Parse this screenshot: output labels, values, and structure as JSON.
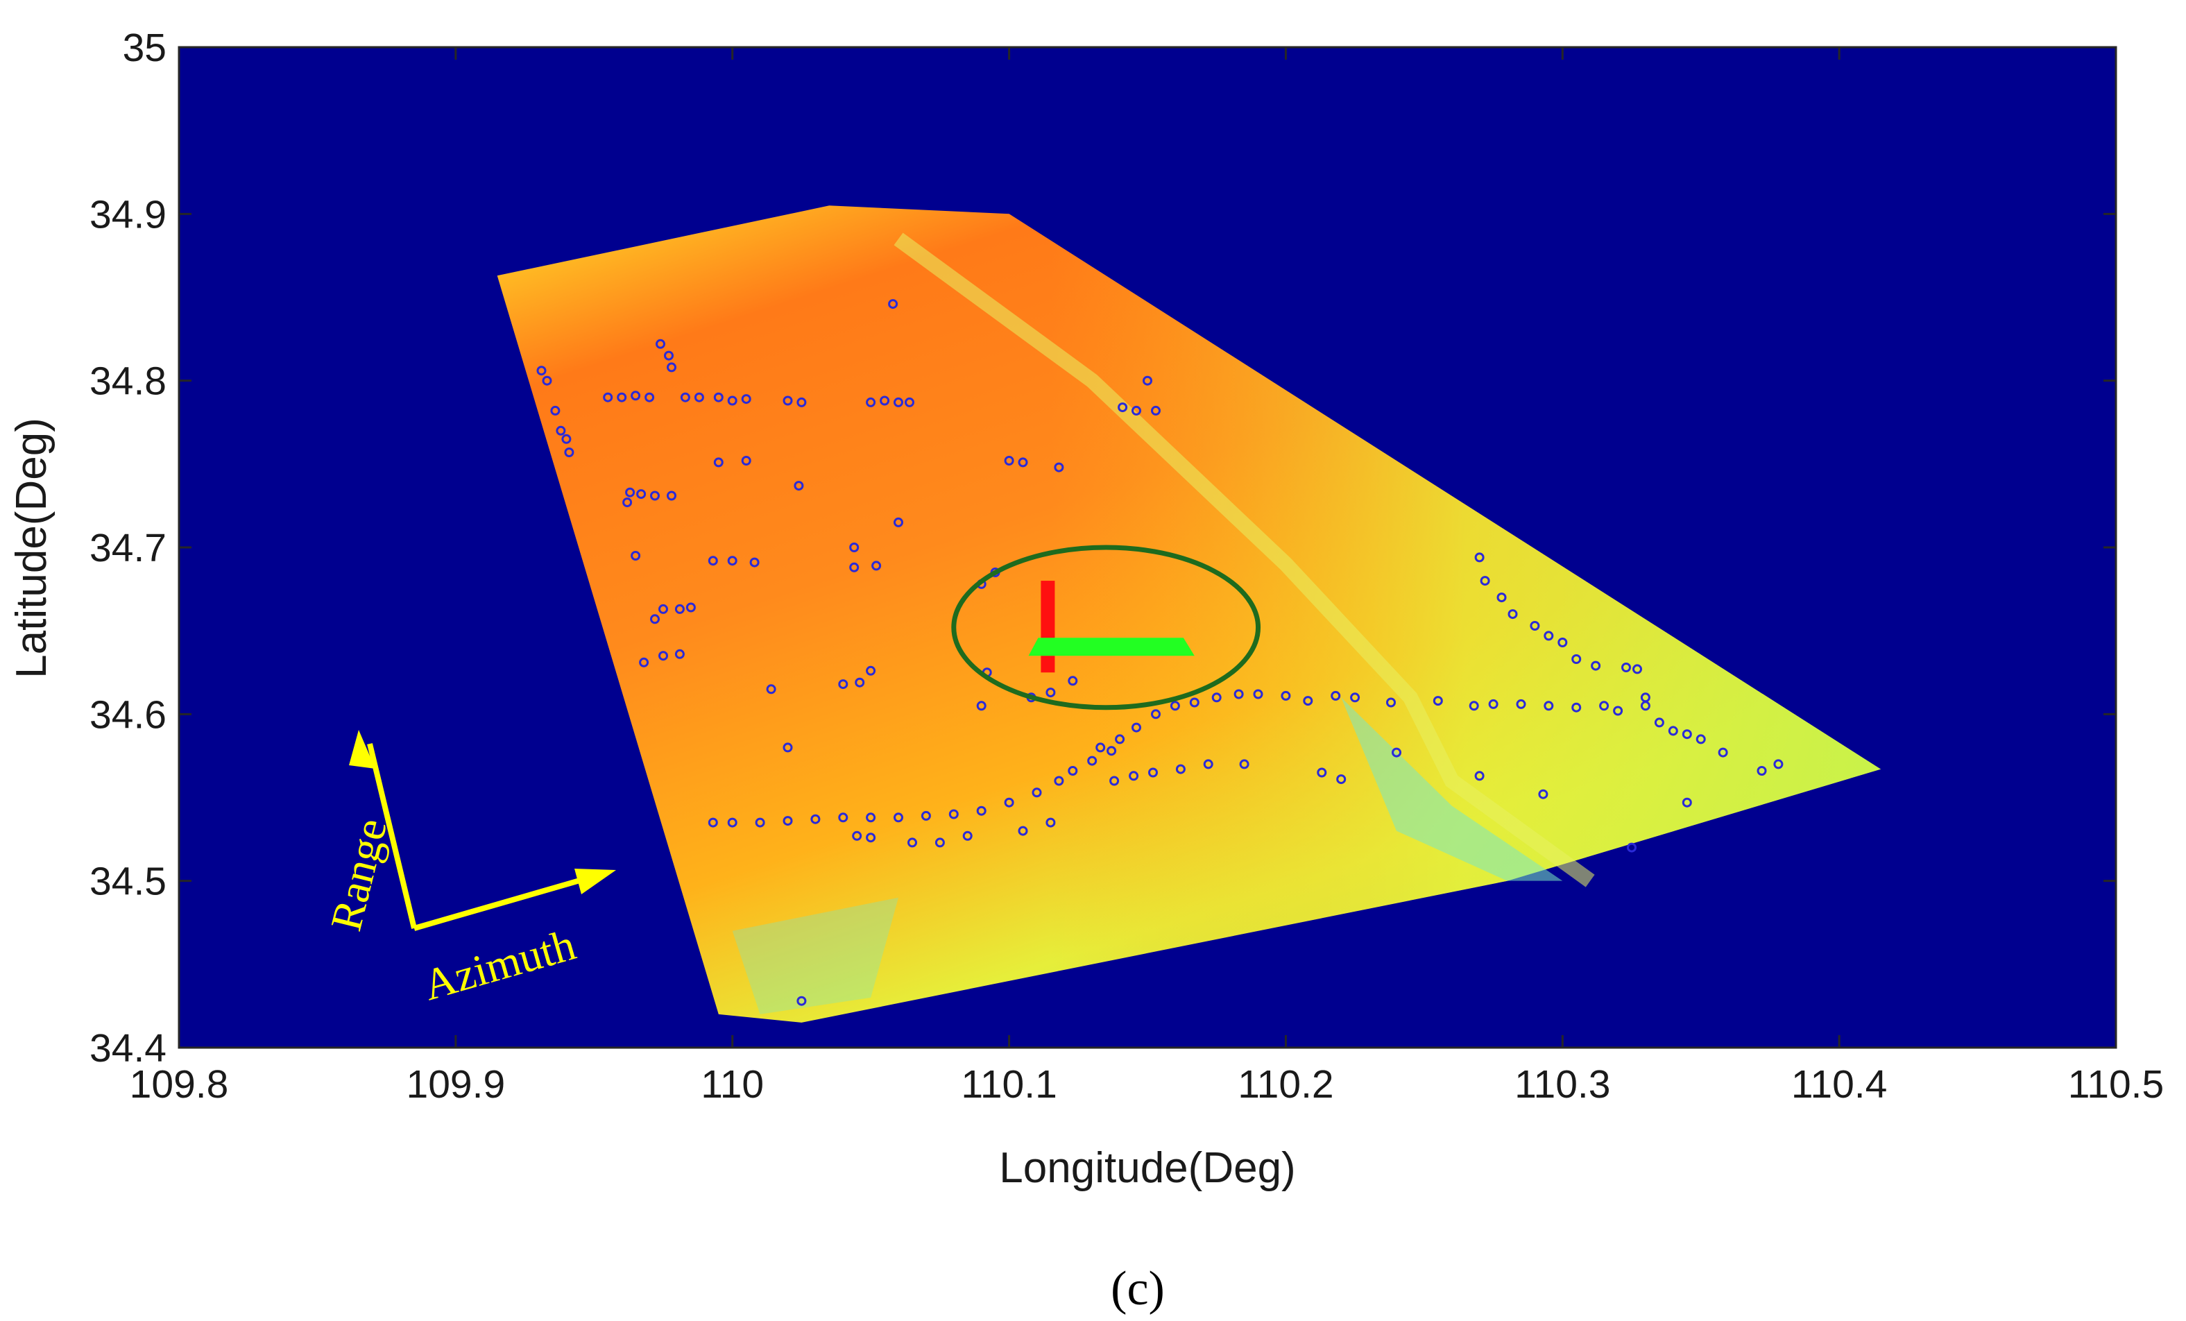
{
  "chart_data": {
    "type": "scatter",
    "background": "SAR-style image footprint rendered as a false-color map",
    "xlabel": "Longitude(Deg)",
    "ylabel": "Latitude(Deg)",
    "xlim": [
      109.8,
      110.5
    ],
    "ylim": [
      34.4,
      35.0
    ],
    "xticks": [
      109.8,
      109.9,
      110.0,
      110.1,
      110.2,
      110.3,
      110.4,
      110.5
    ],
    "xtick_labels": [
      "109.8",
      "109.9",
      "110",
      "110.1",
      "110.2",
      "110.3",
      "110.4",
      "110.5"
    ],
    "yticks": [
      34.4,
      34.5,
      34.6,
      34.7,
      34.8,
      34.9,
      35.0
    ],
    "ytick_labels": [
      "34.4",
      "34.5",
      "34.6",
      "34.7",
      "34.8",
      "34.9",
      "35"
    ],
    "grid": false,
    "colors": {
      "background": "#00008f",
      "footprint_high": "#ff5a10",
      "footprint_mid": "#ffb21a",
      "footprint_low": "#d9f03a",
      "footprint_edge": "#5ee6b0",
      "points": "#2a2ad8",
      "ellipse": "#1e6b1e",
      "red_marker": "#ff1010",
      "green_marker": "#22ff22",
      "annotation_arrows": "#ffff00"
    },
    "footprint_corners": [
      [
        109.915,
        34.863
      ],
      [
        110.035,
        34.905
      ],
      [
        110.1,
        34.9
      ],
      [
        110.415,
        34.567
      ],
      [
        110.28,
        34.5
      ],
      [
        110.025,
        34.415
      ],
      [
        109.995,
        34.42
      ]
    ],
    "ellipse": {
      "center": [
        110.135,
        34.652
      ],
      "rx": 0.055,
      "ry": 0.048
    },
    "red_marker": {
      "x": 110.114,
      "y_range": [
        34.625,
        34.68
      ]
    },
    "green_marker": {
      "x_range": [
        110.107,
        110.165
      ],
      "y": 34.64
    },
    "annotations": {
      "range_label": "Range",
      "azimuth_label": "Azimuth"
    },
    "points": [
      [
        109.931,
        34.806
      ],
      [
        109.933,
        34.8
      ],
      [
        109.936,
        34.782
      ],
      [
        109.938,
        34.77
      ],
      [
        109.94,
        34.765
      ],
      [
        109.941,
        34.757
      ],
      [
        109.955,
        34.79
      ],
      [
        109.96,
        34.79
      ],
      [
        109.965,
        34.791
      ],
      [
        109.97,
        34.79
      ],
      [
        109.974,
        34.822
      ],
      [
        109.977,
        34.815
      ],
      [
        109.978,
        34.808
      ],
      [
        109.983,
        34.79
      ],
      [
        109.988,
        34.79
      ],
      [
        109.995,
        34.79
      ],
      [
        110.0,
        34.788
      ],
      [
        110.005,
        34.789
      ],
      [
        110.02,
        34.788
      ],
      [
        110.025,
        34.787
      ],
      [
        110.05,
        34.787
      ],
      [
        110.055,
        34.788
      ],
      [
        110.06,
        34.787
      ],
      [
        110.064,
        34.787
      ],
      [
        110.1,
        34.752
      ],
      [
        110.105,
        34.751
      ],
      [
        110.118,
        34.748
      ],
      [
        109.995,
        34.751
      ],
      [
        110.005,
        34.752
      ],
      [
        109.963,
        34.733
      ],
      [
        109.967,
        34.732
      ],
      [
        109.972,
        34.731
      ],
      [
        109.978,
        34.731
      ],
      [
        109.962,
        34.727
      ],
      [
        109.965,
        34.695
      ],
      [
        109.993,
        34.692
      ],
      [
        110.0,
        34.692
      ],
      [
        110.008,
        34.691
      ],
      [
        110.044,
        34.688
      ],
      [
        110.052,
        34.689
      ],
      [
        109.975,
        34.663
      ],
      [
        109.981,
        34.663
      ],
      [
        109.985,
        34.664
      ],
      [
        109.972,
        34.657
      ],
      [
        109.968,
        34.631
      ],
      [
        109.975,
        34.635
      ],
      [
        109.981,
        34.636
      ],
      [
        110.04,
        34.618
      ],
      [
        110.046,
        34.619
      ],
      [
        110.05,
        34.626
      ],
      [
        110.058,
        34.846
      ],
      [
        110.15,
        34.8
      ],
      [
        110.141,
        34.784
      ],
      [
        110.146,
        34.782
      ],
      [
        110.153,
        34.782
      ],
      [
        110.09,
        34.678
      ],
      [
        110.095,
        34.685
      ],
      [
        110.108,
        34.61
      ],
      [
        110.115,
        34.613
      ],
      [
        110.123,
        34.62
      ],
      [
        110.133,
        34.58
      ],
      [
        110.14,
        34.585
      ],
      [
        110.146,
        34.592
      ],
      [
        110.153,
        34.6
      ],
      [
        110.16,
        34.605
      ],
      [
        110.167,
        34.607
      ],
      [
        110.175,
        34.61
      ],
      [
        110.183,
        34.612
      ],
      [
        110.19,
        34.612
      ],
      [
        110.2,
        34.611
      ],
      [
        110.208,
        34.608
      ],
      [
        110.218,
        34.611
      ],
      [
        110.225,
        34.61
      ],
      [
        110.238,
        34.607
      ],
      [
        110.255,
        34.608
      ],
      [
        110.268,
        34.605
      ],
      [
        110.275,
        34.606
      ],
      [
        110.285,
        34.606
      ],
      [
        110.295,
        34.605
      ],
      [
        110.305,
        34.604
      ],
      [
        110.315,
        34.605
      ],
      [
        110.32,
        34.602
      ],
      [
        110.33,
        34.605
      ],
      [
        109.993,
        34.535
      ],
      [
        110.0,
        34.535
      ],
      [
        110.01,
        34.535
      ],
      [
        110.02,
        34.536
      ],
      [
        110.03,
        34.537
      ],
      [
        110.04,
        34.538
      ],
      [
        110.05,
        34.538
      ],
      [
        110.06,
        34.538
      ],
      [
        110.07,
        34.539
      ],
      [
        110.08,
        34.54
      ],
      [
        110.09,
        34.542
      ],
      [
        110.1,
        34.547
      ],
      [
        110.11,
        34.553
      ],
      [
        110.118,
        34.56
      ],
      [
        110.123,
        34.566
      ],
      [
        110.13,
        34.572
      ],
      [
        110.137,
        34.578
      ],
      [
        110.045,
        34.527
      ],
      [
        110.05,
        34.526
      ],
      [
        110.065,
        34.523
      ],
      [
        110.075,
        34.523
      ],
      [
        110.085,
        34.527
      ],
      [
        110.105,
        34.53
      ],
      [
        110.115,
        34.535
      ],
      [
        110.138,
        34.56
      ],
      [
        110.145,
        34.563
      ],
      [
        110.152,
        34.565
      ],
      [
        110.162,
        34.567
      ],
      [
        110.172,
        34.57
      ],
      [
        110.185,
        34.57
      ],
      [
        110.22,
        34.561
      ],
      [
        110.213,
        34.565
      ],
      [
        110.27,
        34.694
      ],
      [
        110.272,
        34.68
      ],
      [
        110.278,
        34.67
      ],
      [
        110.282,
        34.66
      ],
      [
        110.29,
        34.653
      ],
      [
        110.295,
        34.647
      ],
      [
        110.3,
        34.643
      ],
      [
        110.305,
        34.633
      ],
      [
        110.312,
        34.629
      ],
      [
        110.323,
        34.628
      ],
      [
        110.327,
        34.627
      ],
      [
        110.33,
        34.61
      ],
      [
        110.335,
        34.595
      ],
      [
        110.34,
        34.59
      ],
      [
        110.345,
        34.588
      ],
      [
        110.35,
        34.585
      ],
      [
        110.358,
        34.577
      ],
      [
        110.372,
        34.566
      ],
      [
        110.378,
        34.57
      ],
      [
        110.24,
        34.577
      ],
      [
        110.27,
        34.563
      ],
      [
        110.293,
        34.552
      ],
      [
        110.345,
        34.547
      ],
      [
        110.325,
        34.52
      ],
      [
        110.02,
        34.58
      ],
      [
        110.014,
        34.615
      ],
      [
        110.092,
        34.625
      ],
      [
        110.044,
        34.7
      ],
      [
        110.024,
        34.737
      ],
      [
        110.025,
        34.428
      ],
      [
        110.09,
        34.605
      ],
      [
        110.06,
        34.715
      ]
    ]
  },
  "caption": "(c)"
}
